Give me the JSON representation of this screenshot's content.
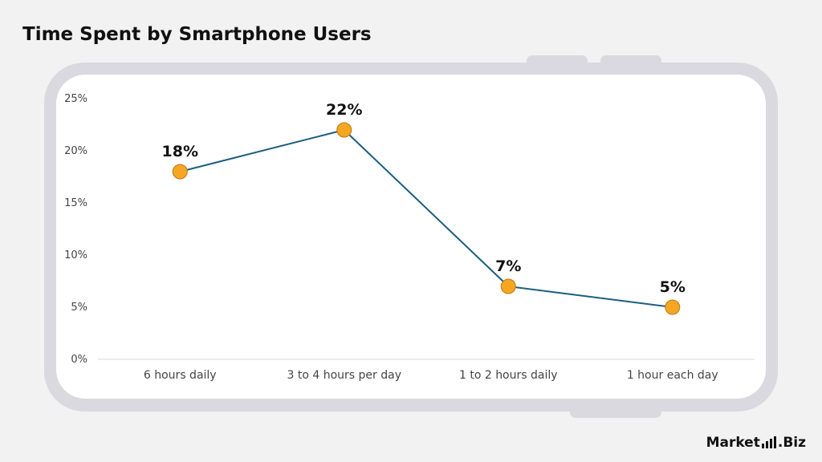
{
  "chart_data": {
    "type": "line",
    "title": "Time Spent by Smartphone Users",
    "categories": [
      "6 hours daily",
      "3 to 4 hours per day",
      "1 to 2 hours daily",
      "1 hour each day"
    ],
    "values": [
      18,
      22,
      7,
      5
    ],
    "data_labels": [
      "18%",
      "22%",
      "7%",
      "5%"
    ],
    "y_ticks": [
      "0%",
      "5%",
      "10%",
      "15%",
      "20%",
      "25%"
    ],
    "ylim": [
      0,
      25
    ],
    "xlabel": "",
    "ylabel": "",
    "grid": false,
    "colors": {
      "line": "#1b5e7e",
      "marker": "#f5a623",
      "marker_stroke": "#b87a12"
    }
  },
  "brand": {
    "name_left": "Market",
    "name_right": "Biz"
  }
}
